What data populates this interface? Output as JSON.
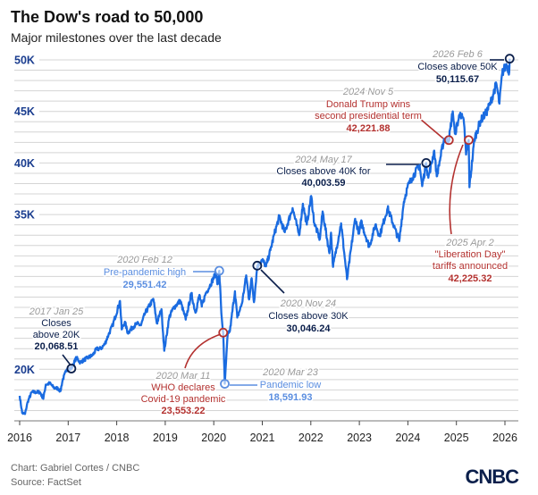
{
  "colors": {
    "line": "#1a6be0",
    "navy": "#0b1f4b",
    "red": "#b3312f",
    "lightblue": "#5b8ee0",
    "grid": "#d4d4d4"
  },
  "chart_data": {
    "type": "line",
    "title": "The Dow's road to 50,000",
    "subtitle": "Major milestones over the last decade",
    "xlim": [
      2016,
      2026
    ],
    "ylim": [
      15000,
      50000
    ],
    "grid": true,
    "x_ticks": [
      "2016",
      "2017",
      "2018",
      "2019",
      "2020",
      "2021",
      "2022",
      "2023",
      "2024",
      "2025",
      "2026"
    ],
    "y_ticks": [
      {
        "value": 50000,
        "label": "50K"
      },
      {
        "value": 45000,
        "label": "45K"
      },
      {
        "value": 40000,
        "label": "40K"
      },
      {
        "value": 35000,
        "label": "35K"
      },
      {
        "value": 20000,
        "label": "20K"
      }
    ],
    "series": [
      {
        "points": [
          [
            "2016-01-01",
            17425
          ],
          [
            "2016-01-20",
            15766
          ],
          [
            "2016-02-11",
            15660
          ],
          [
            "2016-03-01",
            16865
          ],
          [
            "2016-04-01",
            17790
          ],
          [
            "2016-05-01",
            17774
          ],
          [
            "2016-06-01",
            17787
          ],
          [
            "2016-06-27",
            17140
          ],
          [
            "2016-07-15",
            18516
          ],
          [
            "2016-08-15",
            18636
          ],
          [
            "2016-09-15",
            18212
          ],
          [
            "2016-10-15",
            18138
          ],
          [
            "2016-11-04",
            17888
          ],
          [
            "2016-11-20",
            18956
          ],
          [
            "2016-12-20",
            19974
          ],
          [
            "2017-01-25",
            20068
          ],
          [
            "2017-03-01",
            21115
          ],
          [
            "2017-04-01",
            20663
          ],
          [
            "2017-05-01",
            20941
          ],
          [
            "2017-06-01",
            21144
          ],
          [
            "2017-07-01",
            21350
          ],
          [
            "2017-08-01",
            21963
          ],
          [
            "2017-09-01",
            21988
          ],
          [
            "2017-10-01",
            22405
          ],
          [
            "2017-11-01",
            23377
          ],
          [
            "2017-12-01",
            24272
          ],
          [
            "2018-01-26",
            26617
          ],
          [
            "2018-02-08",
            23860
          ],
          [
            "2018-03-01",
            24608
          ],
          [
            "2018-03-23",
            23533
          ],
          [
            "2018-05-01",
            24099
          ],
          [
            "2018-06-01",
            24416
          ],
          [
            "2018-07-01",
            24271
          ],
          [
            "2018-08-01",
            25415
          ],
          [
            "2018-10-03",
            26828
          ],
          [
            "2018-10-29",
            24443
          ],
          [
            "2018-12-03",
            25826
          ],
          [
            "2018-12-24",
            21792
          ],
          [
            "2019-02-01",
            25063
          ],
          [
            "2019-03-01",
            25916
          ],
          [
            "2019-04-23",
            26656
          ],
          [
            "2019-06-03",
            24819
          ],
          [
            "2019-07-15",
            27359
          ],
          [
            "2019-08-15",
            25479
          ],
          [
            "2019-09-15",
            27219
          ],
          [
            "2019-10-02",
            26078
          ],
          [
            "2019-11-01",
            27347
          ],
          [
            "2019-12-01",
            28051
          ],
          [
            "2020-01-17",
            29348
          ],
          [
            "2020-01-31",
            28256
          ],
          [
            "2020-02-12",
            29551
          ],
          [
            "2020-02-28",
            25409
          ],
          [
            "2020-03-11",
            23553
          ],
          [
            "2020-03-23",
            18592
          ],
          [
            "2020-04-15",
            23504
          ],
          [
            "2020-05-01",
            23723
          ],
          [
            "2020-06-08",
            27572
          ],
          [
            "2020-06-26",
            25016
          ],
          [
            "2020-08-01",
            26428
          ],
          [
            "2020-09-02",
            29100
          ],
          [
            "2020-09-23",
            26763
          ],
          [
            "2020-10-12",
            28837
          ],
          [
            "2020-10-30",
            26502
          ],
          [
            "2020-11-24",
            30046
          ],
          [
            "2020-12-31",
            30606
          ],
          [
            "2021-01-29",
            29983
          ],
          [
            "2021-03-01",
            31535
          ],
          [
            "2021-04-01",
            33153
          ],
          [
            "2021-05-07",
            34778
          ],
          [
            "2021-06-18",
            33290
          ],
          [
            "2021-08-16",
            35625
          ],
          [
            "2021-10-04",
            33002
          ],
          [
            "2021-11-02",
            36052
          ],
          [
            "2021-12-01",
            34022
          ],
          [
            "2022-01-04",
            36799
          ],
          [
            "2022-01-27",
            34160
          ],
          [
            "2022-03-08",
            32632
          ],
          [
            "2022-03-29",
            35294
          ],
          [
            "2022-05-19",
            31253
          ],
          [
            "2022-06-01",
            33248
          ],
          [
            "2022-06-16",
            29927
          ],
          [
            "2022-08-16",
            34152
          ],
          [
            "2022-09-30",
            28726
          ],
          [
            "2022-11-30",
            34590
          ],
          [
            "2022-12-30",
            33147
          ],
          [
            "2023-01-13",
            34303
          ],
          [
            "2023-03-15",
            31875
          ],
          [
            "2023-05-01",
            34051
          ],
          [
            "2023-05-31",
            32908
          ],
          [
            "2023-08-01",
            35630
          ],
          [
            "2023-10-27",
            32418
          ],
          [
            "2023-12-01",
            36246
          ],
          [
            "2023-12-29",
            37690
          ],
          [
            "2024-02-01",
            38519
          ],
          [
            "2024-03-28",
            39807
          ],
          [
            "2024-04-17",
            37753
          ],
          [
            "2024-05-17",
            40004
          ],
          [
            "2024-06-03",
            38571
          ],
          [
            "2024-07-17",
            41198
          ],
          [
            "2024-08-05",
            38703
          ],
          [
            "2024-09-30",
            42330
          ],
          [
            "2024-11-05",
            42222
          ],
          [
            "2024-12-04",
            45014
          ],
          [
            "2024-12-20",
            42840
          ],
          [
            "2025-01-30",
            44882
          ],
          [
            "2025-02-28",
            43841
          ],
          [
            "2025-03-13",
            40814
          ],
          [
            "2025-04-02",
            42225
          ],
          [
            "2025-04-08",
            37645
          ],
          [
            "2025-05-15",
            42322
          ],
          [
            "2025-06-30",
            44095
          ],
          [
            "2025-08-14",
            44911
          ],
          [
            "2025-09-15",
            45883
          ],
          [
            "2025-10-28",
            47706
          ],
          [
            "2025-11-20",
            45752
          ],
          [
            "2025-12-11",
            48704
          ],
          [
            "2026-01-12",
            49590
          ],
          [
            "2026-02-03",
            48800
          ],
          [
            "2026-02-06",
            50116
          ]
        ]
      }
    ],
    "annotations": [
      {
        "date": "2017 Jan 25",
        "lines": [
          "Closes",
          "above 20K"
        ],
        "value": "20,068.51",
        "at": [
          "2017-01-25",
          20068.51
        ],
        "color": "navy"
      },
      {
        "date": "2020 Feb 12",
        "lines": [
          "Pre-pandemic high"
        ],
        "value": "29,551.42",
        "at": [
          "2020-02-12",
          29551.42
        ],
        "color": "lightblue"
      },
      {
        "date": "2020 Mar 11",
        "lines": [
          "WHO declares",
          "Covid-19 pandemic"
        ],
        "value": "23,553.22",
        "at": [
          "2020-03-11",
          23553.22
        ],
        "color": "red"
      },
      {
        "date": "2020 Mar 23",
        "lines": [
          "Pandemic low"
        ],
        "value": "18,591.93",
        "at": [
          "2020-03-23",
          18591.93
        ],
        "color": "lightblue"
      },
      {
        "date": "2020 Nov 24",
        "lines": [
          "Closes above 30K"
        ],
        "value": "30,046.24",
        "at": [
          "2020-11-24",
          30046.24
        ],
        "color": "navy"
      },
      {
        "date": "2024 May 17",
        "lines": [
          "Closes above 40K for"
        ],
        "value": "40,003.59",
        "at": [
          "2024-05-17",
          40003.59
        ],
        "color": "navy"
      },
      {
        "date": "2024 Nov 5",
        "lines": [
          "Donald Trump wins",
          "second presidential term"
        ],
        "value": "42,221.88",
        "at": [
          "2024-11-05",
          42221.88
        ],
        "color": "red"
      },
      {
        "date": "2025 Apr 2",
        "lines": [
          "\"Liberation Day\"",
          "tariffs announced"
        ],
        "value": "42,225.32",
        "at": [
          "2025-04-02",
          42225.32
        ],
        "color": "red"
      },
      {
        "date": "2026 Feb 6",
        "lines": [
          "Closes above 50K"
        ],
        "value": "50,115.67",
        "at": [
          "2026-02-06",
          50115.67
        ],
        "color": "navy"
      }
    ]
  },
  "footer": {
    "credit": "Chart: Gabriel Cortes / CNBC",
    "source": "Source: FactSet",
    "logo": "CNBC"
  }
}
